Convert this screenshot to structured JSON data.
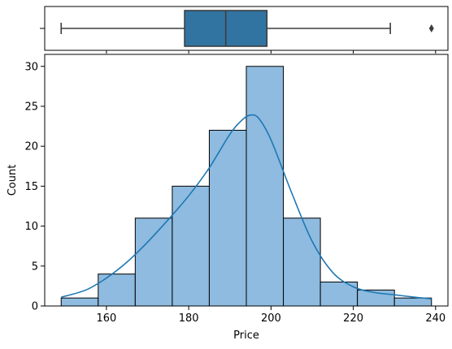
{
  "chart_data": [
    {
      "type": "box",
      "orientation": "horizontal",
      "min_whisker": 149,
      "q1": 179,
      "median": 189,
      "q3": 199,
      "max_whisker": 229,
      "outliers": [
        239
      ],
      "color": "#3274a1"
    },
    {
      "type": "bar",
      "subtype": "histogram",
      "xlabel": "Price",
      "ylabel": "Count",
      "xlim": [
        145,
        243
      ],
      "ylim": [
        0,
        31.5
      ],
      "xticks": [
        160,
        180,
        200,
        220,
        240
      ],
      "yticks": [
        0,
        5,
        10,
        15,
        20,
        25,
        30
      ],
      "bins": [
        {
          "x0": 149,
          "x1": 158,
          "count": 1
        },
        {
          "x0": 158,
          "x1": 167,
          "count": 4
        },
        {
          "x0": 167,
          "x1": 176,
          "count": 11
        },
        {
          "x0": 176,
          "x1": 185,
          "count": 15
        },
        {
          "x0": 185,
          "x1": 194,
          "count": 22
        },
        {
          "x0": 194,
          "x1": 203,
          "count": 30
        },
        {
          "x0": 203,
          "x1": 212,
          "count": 11
        },
        {
          "x0": 212,
          "x1": 221,
          "count": 3
        },
        {
          "x0": 221,
          "x1": 230,
          "count": 2
        },
        {
          "x0": 230,
          "x1": 239,
          "count": 1
        }
      ],
      "kde": {
        "x": [
          149,
          155,
          160,
          165,
          170,
          175,
          180,
          185,
          190,
          193,
          195,
          197,
          200,
          205,
          210,
          215,
          220,
          225,
          230,
          235,
          239
        ],
        "y": [
          1.1,
          2.0,
          3.5,
          5.5,
          8.0,
          10.8,
          13.8,
          17.3,
          21.5,
          23.3,
          23.9,
          23.5,
          20.8,
          14.2,
          8.1,
          4.2,
          2.4,
          1.7,
          1.4,
          1.1,
          0.9
        ]
      },
      "bar_color": "#8ebbdf",
      "line_color": "#1f77b4"
    }
  ]
}
